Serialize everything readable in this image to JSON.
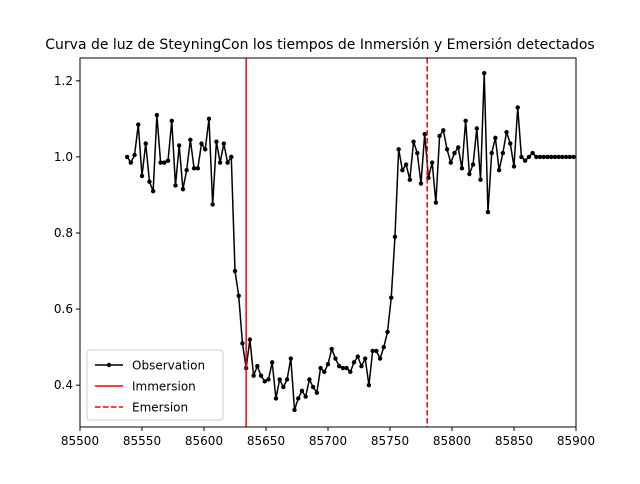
{
  "chart_data": {
    "type": "line",
    "title": "Curva de luz de SteyningCon los tiempos de Inmersión y Emersión detectados",
    "xlabel": "",
    "ylabel": "",
    "xlim": [
      85500,
      85900
    ],
    "ylim": [
      0.29,
      1.26
    ],
    "xticks": [
      85500,
      85550,
      85600,
      85650,
      85700,
      85750,
      85800,
      85850,
      85900
    ],
    "yticks": [
      0.4,
      0.6,
      0.8,
      1.0,
      1.2
    ],
    "ytick_labels": [
      "0.4",
      "0.6",
      "0.8",
      "1.0",
      "1.2"
    ],
    "grid": false,
    "legend_position": "lower left",
    "series": [
      {
        "name": "Observation",
        "style": "line-with-dots",
        "color": "#000000",
        "x": [
          85538,
          85541,
          85544,
          85547,
          85550,
          85553,
          85556,
          85559,
          85562,
          85565,
          85568,
          85571,
          85574,
          85577,
          85580,
          85583,
          85586,
          85589,
          85592,
          85595,
          85598,
          85601,
          85604,
          85607,
          85610,
          85613,
          85616,
          85619,
          85622,
          85625,
          85628,
          85631,
          85634,
          85637,
          85640,
          85643,
          85646,
          85649,
          85652,
          85655,
          85658,
          85661,
          85664,
          85667,
          85670,
          85673,
          85676,
          85679,
          85682,
          85685,
          85688,
          85691,
          85694,
          85697,
          85700,
          85703,
          85706,
          85709,
          85712,
          85715,
          85718,
          85721,
          85724,
          85727,
          85730,
          85733,
          85736,
          85739,
          85742,
          85745,
          85748,
          85751,
          85754,
          85757,
          85760,
          85763,
          85766,
          85769,
          85772,
          85775,
          85778,
          85781,
          85784,
          85787,
          85790,
          85793,
          85796,
          85799,
          85802,
          85805,
          85808,
          85811,
          85814,
          85817,
          85820,
          85823,
          85826,
          85829,
          85832,
          85835,
          85838,
          85841,
          85844,
          85847,
          85850,
          85853,
          85856,
          85859,
          85862,
          85865,
          85868,
          85871,
          85874,
          85877,
          85880,
          85883,
          85886,
          85889,
          85892,
          85895,
          85898
        ],
        "y": [
          1.0,
          0.985,
          1.005,
          1.085,
          0.95,
          1.035,
          0.935,
          0.91,
          1.11,
          0.985,
          0.985,
          0.99,
          1.095,
          0.925,
          1.03,
          0.915,
          0.965,
          1.045,
          0.97,
          0.97,
          1.035,
          1.02,
          1.1,
          0.875,
          1.04,
          0.985,
          1.035,
          0.985,
          1.0,
          0.7,
          0.635,
          0.51,
          0.445,
          0.52,
          0.425,
          0.45,
          0.425,
          0.41,
          0.415,
          0.46,
          0.365,
          0.415,
          0.395,
          0.415,
          0.47,
          0.335,
          0.365,
          0.385,
          0.37,
          0.415,
          0.395,
          0.38,
          0.445,
          0.435,
          0.455,
          0.495,
          0.47,
          0.45,
          0.445,
          0.445,
          0.435,
          0.46,
          0.475,
          0.45,
          0.47,
          0.4,
          0.49,
          0.49,
          0.47,
          0.5,
          0.54,
          0.63,
          0.79,
          1.02,
          0.965,
          0.98,
          0.94,
          1.04,
          1.01,
          0.93,
          1.06,
          0.945,
          0.985,
          0.88,
          1.055,
          1.07,
          1.02,
          0.985,
          1.01,
          1.025,
          0.97,
          1.095,
          0.955,
          0.98,
          1.075,
          0.94,
          1.22,
          0.855,
          1.01,
          1.05,
          0.965,
          1.01,
          1.065,
          1.035,
          0.975,
          1.13,
          1.0,
          0.99,
          1.0,
          1.01,
          1.0,
          1.0,
          1.0,
          1.0,
          1.0,
          1.0,
          1.0,
          1.0,
          1.0,
          1.0,
          1.0
        ]
      },
      {
        "name": "Immersion",
        "style": "vline-solid",
        "color": "#ff0000",
        "x": 85634
      },
      {
        "name": "Emersion",
        "style": "vline-dashed",
        "color": "#ff0000",
        "x": 85780
      }
    ]
  }
}
